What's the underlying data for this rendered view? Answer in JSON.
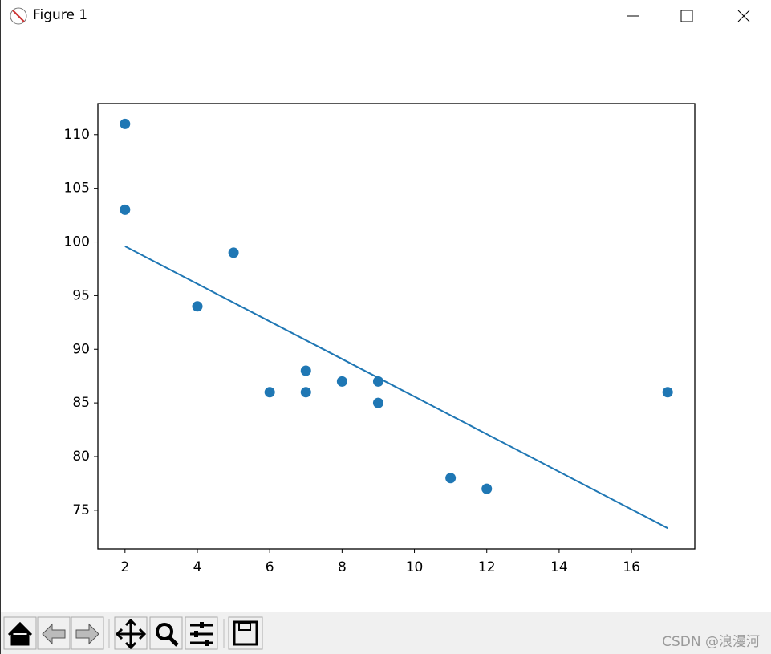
{
  "window": {
    "title": "Figure 1"
  },
  "watermark": "CSDN @浪漫河",
  "chart_data": {
    "type": "scatter",
    "x": [
      5,
      7,
      8,
      7,
      2,
      17,
      2,
      9,
      4,
      11,
      12,
      9,
      6
    ],
    "series": [
      {
        "type": "scatter",
        "color": "#1f77b4",
        "values": [
          99,
          86,
          87,
          88,
          111,
          86,
          103,
          87,
          94,
          78,
          77,
          85,
          86
        ]
      },
      {
        "type": "line",
        "color": "#1f77b4",
        "values": [
          94.35,
          90.85,
          89.1,
          90.85,
          99.6,
          73.33,
          99.6,
          87.34,
          96.1,
          83.84,
          82.09,
          87.34,
          92.6
        ]
      }
    ],
    "xlim": [
      1.25,
      17.75
    ],
    "ylim": [
      71.4,
      112.9
    ],
    "xticks": [
      2,
      4,
      6,
      8,
      10,
      12,
      14,
      16
    ],
    "yticks": [
      75,
      80,
      85,
      90,
      95,
      100,
      105,
      110
    ],
    "grid": false
  }
}
